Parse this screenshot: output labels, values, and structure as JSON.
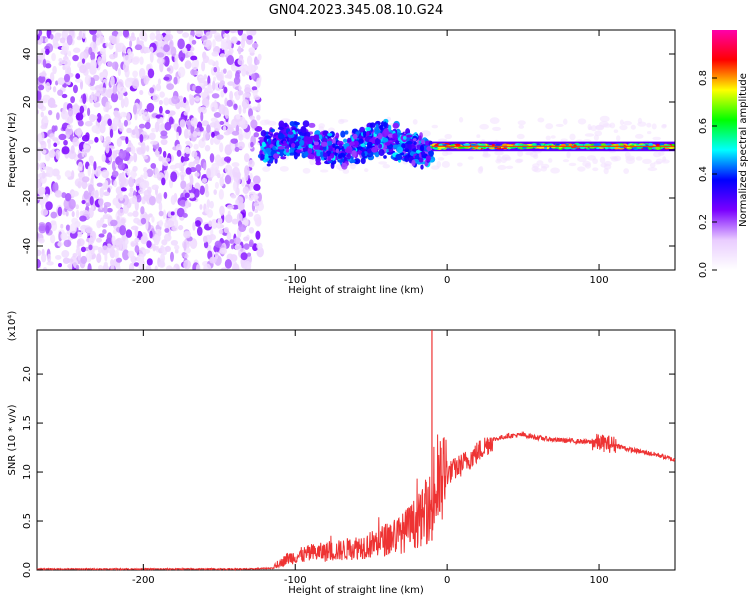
{
  "title": "GN04.2023.345.08.10.G24",
  "chart_data": [
    {
      "type": "heatmap",
      "xlabel": "Height of straight line (km)",
      "ylabel": "Frequency (Hz)",
      "xlim": [
        -270,
        150
      ],
      "ylim": [
        -50,
        50
      ],
      "xticks": [
        -200,
        -100,
        0,
        100
      ],
      "yticks": [
        -40,
        -20,
        0,
        20,
        40
      ],
      "colorbar": {
        "label": "Normalized spectral amplitude",
        "range": [
          0,
          1
        ],
        "ticks": [
          0.0,
          0.2,
          0.4,
          0.6,
          0.8
        ],
        "colormap": [
          "#ffffff",
          "#e9ccff",
          "#7a00ff",
          "#0000ff",
          "#00ffff",
          "#00ff00",
          "#ffff00",
          "#ff0000",
          "#ff00aa"
        ]
      },
      "regions": [
        {
          "x_range": [
            -270,
            -123
          ],
          "y_range": [
            -50,
            50
          ],
          "amplitude": [
            0.05,
            0.2
          ],
          "pattern": "noise"
        },
        {
          "x_range": [
            -123,
            -10
          ],
          "y_center": 2,
          "half_width_hz": 8,
          "amplitude": [
            0.2,
            0.5
          ],
          "pattern": "wandering band"
        },
        {
          "x_range": [
            -10,
            150
          ],
          "y_center": 1.5,
          "half_width_hz": 2,
          "amplitude": [
            0.4,
            0.9
          ],
          "pattern": "steady narrow line"
        }
      ],
      "grid": false
    },
    {
      "type": "line",
      "xlabel": "Height of straight line (km)",
      "ylabel": "SNR (10 * v/v)",
      "y_scale_label": "(x10⁴)",
      "xlim": [
        -270,
        150
      ],
      "ylim": [
        0,
        2.45
      ],
      "xticks": [
        -200,
        -100,
        0,
        100
      ],
      "yticks": [
        0.0,
        0.5,
        1.0,
        1.5,
        2.0
      ],
      "color": "#ee3333",
      "spike": {
        "x": -10,
        "y": 2.45
      },
      "x": [
        -270,
        -250,
        -200,
        -150,
        -130,
        -115,
        -105,
        -90,
        -70,
        -50,
        -30,
        -15,
        -10,
        -5,
        0,
        10,
        20,
        30,
        40,
        50,
        60,
        70,
        80,
        90,
        100,
        110,
        120,
        130,
        140,
        150
      ],
      "y": [
        0.01,
        0.01,
        0.01,
        0.01,
        0.01,
        0.02,
        0.12,
        0.17,
        0.2,
        0.26,
        0.37,
        0.55,
        0.68,
        0.85,
        0.98,
        1.08,
        1.2,
        1.33,
        1.37,
        1.38,
        1.35,
        1.33,
        1.32,
        1.31,
        1.3,
        1.28,
        1.23,
        1.2,
        1.17,
        1.12
      ],
      "grid": false
    }
  ]
}
